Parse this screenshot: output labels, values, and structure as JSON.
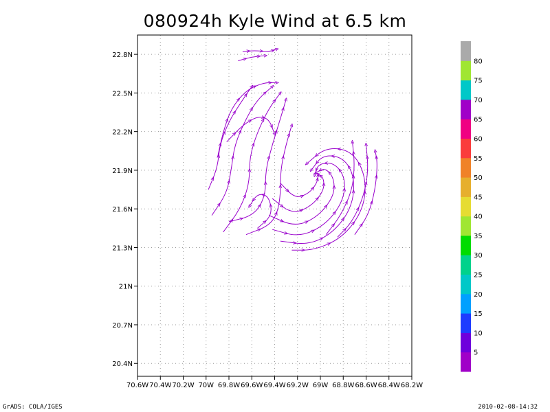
{
  "title": "080924h Kyle Wind at 6.5 km",
  "footer": {
    "left": "GrADS: COLA/IGES",
    "right": "2010-02-08-14:32"
  },
  "chart_data": {
    "type": "streamline",
    "title": "080924h Kyle Wind at 6.5 km",
    "xlabel": "",
    "ylabel": "",
    "xlim": [
      -70.6,
      -68.2
    ],
    "ylim": [
      20.3,
      22.95
    ],
    "x_ticks": [
      {
        "v": -70.6,
        "label": "70.6W"
      },
      {
        "v": -70.4,
        "label": "70.4W"
      },
      {
        "v": -70.2,
        "label": "70.2W"
      },
      {
        "v": -70.0,
        "label": "70W"
      },
      {
        "v": -69.8,
        "label": "69.8W"
      },
      {
        "v": -69.6,
        "label": "69.6W"
      },
      {
        "v": -69.4,
        "label": "69.4W"
      },
      {
        "v": -69.2,
        "label": "69.2W"
      },
      {
        "v": -69.0,
        "label": "69W"
      },
      {
        "v": -68.8,
        "label": "68.8W"
      },
      {
        "v": -68.6,
        "label": "68.6W"
      },
      {
        "v": -68.4,
        "label": "68.4W"
      },
      {
        "v": -68.2,
        "label": "68.2W"
      }
    ],
    "y_ticks": [
      {
        "v": 20.4,
        "label": "20.4N"
      },
      {
        "v": 20.7,
        "label": "20.7N"
      },
      {
        "v": 21.0,
        "label": "21N"
      },
      {
        "v": 21.3,
        "label": "21.3N"
      },
      {
        "v": 21.6,
        "label": "21.6N"
      },
      {
        "v": 21.9,
        "label": "21.9N"
      },
      {
        "v": 22.2,
        "label": "22.2N"
      },
      {
        "v": 22.5,
        "label": "22.5N"
      },
      {
        "v": 22.8,
        "label": "22.8N"
      }
    ],
    "grid": true,
    "streamline_color": "#9900cc",
    "circulation_center": {
      "lon": -69.0,
      "lat": 21.85
    },
    "colorbar": {
      "labels": [
        "5",
        "10",
        "15",
        "20",
        "25",
        "30",
        "35",
        "40",
        "45",
        "50",
        "55",
        "60",
        "65",
        "70",
        "75",
        "80"
      ],
      "colors": [
        "#a000c8",
        "#6e00dc",
        "#1e3cff",
        "#00a0ff",
        "#00c8c8",
        "#00d28c",
        "#00dc00",
        "#a0e632",
        "#e6dc32",
        "#e6af2d",
        "#f08228",
        "#fa3c3c",
        "#f00082",
        "#a000c8",
        "#00c8c8",
        "#a0e632",
        "#aaaaaa"
      ]
    },
    "streamlines": [
      [
        [
          -69.25,
          21.28
        ],
        [
          -69.05,
          21.28
        ],
        [
          -68.8,
          21.38
        ],
        [
          -68.62,
          21.6
        ],
        [
          -68.6,
          21.85
        ],
        [
          -68.72,
          22.05
        ],
        [
          -68.95,
          22.08
        ],
        [
          -69.12,
          21.95
        ]
      ],
      [
        [
          -69.35,
          21.35
        ],
        [
          -69.1,
          21.32
        ],
        [
          -68.88,
          21.42
        ],
        [
          -68.72,
          21.62
        ],
        [
          -68.7,
          21.85
        ],
        [
          -68.8,
          22.0
        ],
        [
          -68.98,
          22.02
        ],
        [
          -69.08,
          21.9
        ]
      ],
      [
        [
          -69.42,
          21.44
        ],
        [
          -69.18,
          21.38
        ],
        [
          -68.95,
          21.48
        ],
        [
          -68.8,
          21.66
        ],
        [
          -68.78,
          21.84
        ],
        [
          -68.88,
          21.96
        ],
        [
          -69.02,
          21.95
        ],
        [
          -69.05,
          21.86
        ]
      ],
      [
        [
          -69.45,
          21.55
        ],
        [
          -69.22,
          21.46
        ],
        [
          -69.02,
          21.54
        ],
        [
          -68.88,
          21.7
        ],
        [
          -68.88,
          21.84
        ],
        [
          -68.96,
          21.92
        ],
        [
          -69.04,
          21.88
        ]
      ],
      [
        [
          -69.42,
          21.68
        ],
        [
          -69.25,
          21.56
        ],
        [
          -69.08,
          21.62
        ],
        [
          -68.97,
          21.74
        ],
        [
          -68.97,
          21.84
        ],
        [
          -69.02,
          21.87
        ]
      ],
      [
        [
          -69.35,
          21.8
        ],
        [
          -69.22,
          21.68
        ],
        [
          -69.1,
          21.72
        ],
        [
          -69.03,
          21.8
        ],
        [
          -69.02,
          21.86
        ]
      ],
      [
        [
          -69.85,
          21.42
        ],
        [
          -69.7,
          21.6
        ],
        [
          -69.62,
          21.8
        ],
        [
          -69.62,
          22.0
        ],
        [
          -69.55,
          22.2
        ],
        [
          -69.45,
          22.38
        ],
        [
          -69.35,
          22.5
        ]
      ],
      [
        [
          -69.95,
          21.55
        ],
        [
          -69.82,
          21.72
        ],
        [
          -69.78,
          21.9
        ],
        [
          -69.75,
          22.1
        ],
        [
          -69.65,
          22.3
        ],
        [
          -69.55,
          22.45
        ],
        [
          -69.42,
          22.55
        ]
      ],
      [
        [
          -69.98,
          21.75
        ],
        [
          -69.9,
          21.92
        ],
        [
          -69.88,
          22.1
        ],
        [
          -69.8,
          22.28
        ],
        [
          -69.7,
          22.42
        ],
        [
          -69.6,
          22.55
        ]
      ],
      [
        [
          -69.8,
          21.5
        ],
        [
          -69.58,
          21.55
        ],
        [
          -69.48,
          21.7
        ],
        [
          -69.48,
          21.9
        ],
        [
          -69.42,
          22.1
        ],
        [
          -69.35,
          22.3
        ],
        [
          -69.3,
          22.45
        ]
      ],
      [
        [
          -69.65,
          21.4
        ],
        [
          -69.42,
          21.48
        ],
        [
          -69.35,
          21.65
        ],
        [
          -69.35,
          21.9
        ],
        [
          -69.3,
          22.1
        ],
        [
          -69.25,
          22.25
        ]
      ],
      [
        [
          -69.9,
          22.0
        ],
        [
          -69.85,
          22.2
        ],
        [
          -69.78,
          22.38
        ],
        [
          -69.65,
          22.52
        ],
        [
          -69.5,
          22.58
        ],
        [
          -69.38,
          22.58
        ]
      ],
      [
        [
          -69.82,
          22.12
        ],
        [
          -69.68,
          22.25
        ],
        [
          -69.55,
          22.32
        ],
        [
          -69.45,
          22.3
        ],
        [
          -69.4,
          22.18
        ]
      ],
      [
        [
          -68.85,
          21.38
        ],
        [
          -68.72,
          21.5
        ],
        [
          -68.62,
          21.7
        ],
        [
          -68.58,
          21.9
        ],
        [
          -68.6,
          22.1
        ]
      ],
      [
        [
          -68.95,
          21.4
        ],
        [
          -68.82,
          21.55
        ],
        [
          -68.72,
          21.75
        ],
        [
          -68.7,
          21.95
        ],
        [
          -68.72,
          22.12
        ]
      ],
      [
        [
          -68.7,
          21.4
        ],
        [
          -68.58,
          21.55
        ],
        [
          -68.52,
          21.75
        ],
        [
          -68.5,
          21.95
        ],
        [
          -68.52,
          22.05
        ]
      ],
      [
        [
          -69.55,
          21.45
        ],
        [
          -69.42,
          21.55
        ],
        [
          -69.45,
          21.7
        ],
        [
          -69.55,
          21.72
        ],
        [
          -69.62,
          21.62
        ]
      ],
      [
        [
          -69.68,
          22.82
        ],
        [
          -69.58,
          22.83
        ],
        [
          -69.45,
          22.82
        ],
        [
          -69.38,
          22.84
        ]
      ],
      [
        [
          -69.72,
          22.75
        ],
        [
          -69.6,
          22.78
        ],
        [
          -69.48,
          22.79
        ]
      ]
    ]
  }
}
